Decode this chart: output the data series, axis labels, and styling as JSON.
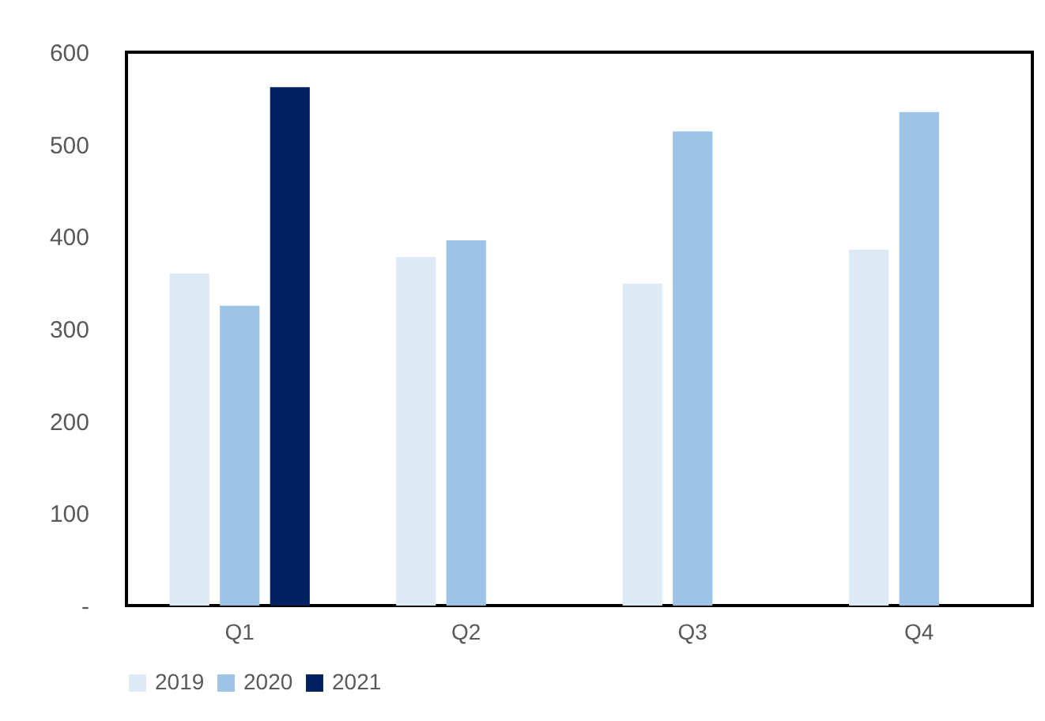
{
  "chart_data": {
    "type": "bar",
    "categories": [
      "Q1",
      "Q2",
      "Q3",
      "Q4"
    ],
    "series": [
      {
        "name": "2019",
        "color": "#dde9f5",
        "values": [
          360,
          378,
          349,
          386
        ]
      },
      {
        "name": "2020",
        "color": "#9dc3e6",
        "values": [
          325,
          396,
          514,
          535
        ]
      },
      {
        "name": "2021",
        "color": "#002060",
        "values": [
          562,
          null,
          null,
          null
        ]
      }
    ],
    "ylim": [
      0,
      600
    ],
    "yticks": [
      {
        "value": 0,
        "label": "-"
      },
      100,
      200,
      300,
      400,
      500,
      600
    ],
    "grid": false,
    "legend": "bottom"
  }
}
